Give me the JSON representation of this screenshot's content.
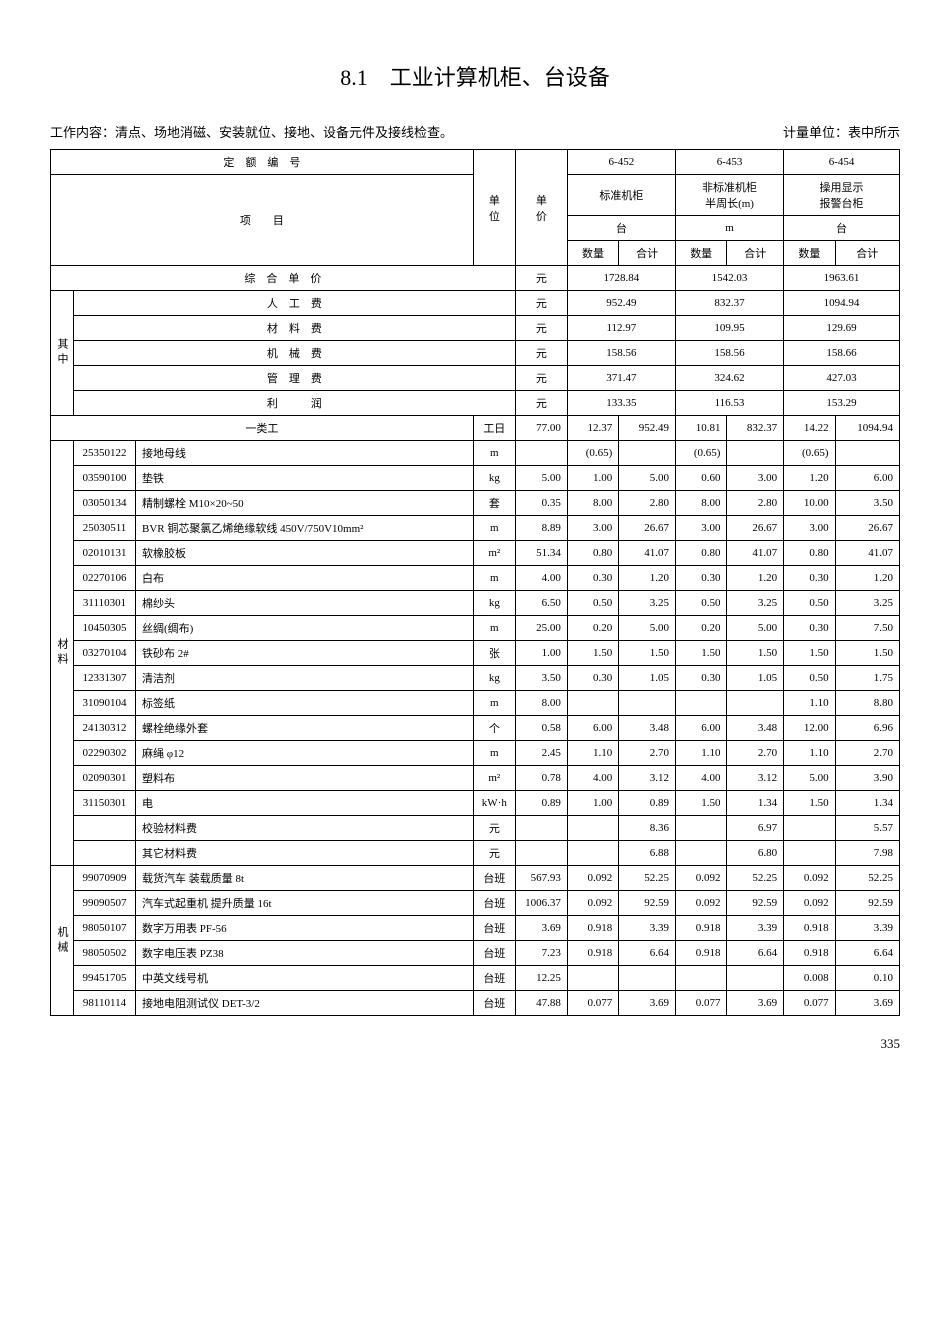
{
  "title": "8.1　工业计算机柜、台设备",
  "work_content": "工作内容：清点、场地消磁、安装就位、接地、设备元件及接线检查。",
  "unit_note": "计量单位：表中所示",
  "page_number": "335",
  "header": {
    "quota_label": "定　额　编　号",
    "item_label": "项　　目",
    "unit_col": "单位",
    "price_col": "单价",
    "qty": "数量",
    "sum": "合计",
    "composite": "综　合　单　价",
    "yuan": "元",
    "cols": [
      {
        "code": "6-452",
        "name": "标准机柜",
        "unit": "台"
      },
      {
        "code": "6-453",
        "name": "非标准机柜\n半周长(m)",
        "unit": "m"
      },
      {
        "code": "6-454",
        "name": "操用显示\n报警台柜",
        "unit": "台"
      }
    ],
    "composite_vals": [
      "1728.84",
      "1542.03",
      "1963.61"
    ]
  },
  "cost_group": {
    "label": "其中",
    "rows": [
      {
        "name": "人　工　费",
        "unit": "元",
        "v": [
          "952.49",
          "832.37",
          "1094.94"
        ]
      },
      {
        "name": "材　料　费",
        "unit": "元",
        "v": [
          "112.97",
          "109.95",
          "129.69"
        ]
      },
      {
        "name": "机　械　费",
        "unit": "元",
        "v": [
          "158.56",
          "158.56",
          "158.66"
        ]
      },
      {
        "name": "管　理　费",
        "unit": "元",
        "v": [
          "371.47",
          "324.62",
          "427.03"
        ]
      },
      {
        "name": "利　　　润",
        "unit": "元",
        "v": [
          "133.35",
          "116.53",
          "153.29"
        ]
      }
    ]
  },
  "labor": {
    "name": "一类工",
    "unit": "工日",
    "price": "77.00",
    "v": [
      [
        "12.37",
        "952.49"
      ],
      [
        "10.81",
        "832.37"
      ],
      [
        "14.22",
        "1094.94"
      ]
    ]
  },
  "materials": {
    "label": "材料",
    "rows": [
      {
        "code": "25350122",
        "name": "接地母线",
        "unit": "m",
        "price": "",
        "v": [
          [
            "(0.65)",
            ""
          ],
          [
            "(0.65)",
            ""
          ],
          [
            "(0.65)",
            ""
          ]
        ]
      },
      {
        "code": "03590100",
        "name": "垫铁",
        "unit": "kg",
        "price": "5.00",
        "v": [
          [
            "1.00",
            "5.00"
          ],
          [
            "0.60",
            "3.00"
          ],
          [
            "1.20",
            "6.00"
          ]
        ]
      },
      {
        "code": "03050134",
        "name": "精制螺栓 M10×20~50",
        "unit": "套",
        "price": "0.35",
        "v": [
          [
            "8.00",
            "2.80"
          ],
          [
            "8.00",
            "2.80"
          ],
          [
            "10.00",
            "3.50"
          ]
        ]
      },
      {
        "code": "25030511",
        "name": "BVR 铜芯聚氯乙烯绝缘软线 450V/750V10mm²",
        "unit": "m",
        "price": "8.89",
        "v": [
          [
            "3.00",
            "26.67"
          ],
          [
            "3.00",
            "26.67"
          ],
          [
            "3.00",
            "26.67"
          ]
        ]
      },
      {
        "code": "02010131",
        "name": "软橡胶板",
        "unit": "m²",
        "price": "51.34",
        "v": [
          [
            "0.80",
            "41.07"
          ],
          [
            "0.80",
            "41.07"
          ],
          [
            "0.80",
            "41.07"
          ]
        ]
      },
      {
        "code": "02270106",
        "name": "白布",
        "unit": "m",
        "price": "4.00",
        "v": [
          [
            "0.30",
            "1.20"
          ],
          [
            "0.30",
            "1.20"
          ],
          [
            "0.30",
            "1.20"
          ]
        ]
      },
      {
        "code": "31110301",
        "name": "棉纱头",
        "unit": "kg",
        "price": "6.50",
        "v": [
          [
            "0.50",
            "3.25"
          ],
          [
            "0.50",
            "3.25"
          ],
          [
            "0.50",
            "3.25"
          ]
        ]
      },
      {
        "code": "10450305",
        "name": "丝绸(绸布)",
        "unit": "m",
        "price": "25.00",
        "v": [
          [
            "0.20",
            "5.00"
          ],
          [
            "0.20",
            "5.00"
          ],
          [
            "0.30",
            "7.50"
          ]
        ]
      },
      {
        "code": "03270104",
        "name": "铁砂布 2#",
        "unit": "张",
        "price": "1.00",
        "v": [
          [
            "1.50",
            "1.50"
          ],
          [
            "1.50",
            "1.50"
          ],
          [
            "1.50",
            "1.50"
          ]
        ]
      },
      {
        "code": "12331307",
        "name": "清洁剂",
        "unit": "kg",
        "price": "3.50",
        "v": [
          [
            "0.30",
            "1.05"
          ],
          [
            "0.30",
            "1.05"
          ],
          [
            "0.50",
            "1.75"
          ]
        ]
      },
      {
        "code": "31090104",
        "name": "标签纸",
        "unit": "m",
        "price": "8.00",
        "v": [
          [
            "",
            ""
          ],
          [
            "",
            ""
          ],
          [
            "1.10",
            "8.80"
          ]
        ]
      },
      {
        "code": "24130312",
        "name": "螺栓绝缘外套",
        "unit": "个",
        "price": "0.58",
        "v": [
          [
            "6.00",
            "3.48"
          ],
          [
            "6.00",
            "3.48"
          ],
          [
            "12.00",
            "6.96"
          ]
        ]
      },
      {
        "code": "02290302",
        "name": "麻绳 φ12",
        "unit": "m",
        "price": "2.45",
        "v": [
          [
            "1.10",
            "2.70"
          ],
          [
            "1.10",
            "2.70"
          ],
          [
            "1.10",
            "2.70"
          ]
        ]
      },
      {
        "code": "02090301",
        "name": "塑料布",
        "unit": "m²",
        "price": "0.78",
        "v": [
          [
            "4.00",
            "3.12"
          ],
          [
            "4.00",
            "3.12"
          ],
          [
            "5.00",
            "3.90"
          ]
        ]
      },
      {
        "code": "31150301",
        "name": "电",
        "unit": "kW·h",
        "price": "0.89",
        "v": [
          [
            "1.00",
            "0.89"
          ],
          [
            "1.50",
            "1.34"
          ],
          [
            "1.50",
            "1.34"
          ]
        ]
      },
      {
        "code": "",
        "name": "校验材料费",
        "unit": "元",
        "price": "",
        "v": [
          [
            "",
            "8.36"
          ],
          [
            "",
            "6.97"
          ],
          [
            "",
            "5.57"
          ]
        ]
      },
      {
        "code": "",
        "name": "其它材料费",
        "unit": "元",
        "price": "",
        "v": [
          [
            "",
            "6.88"
          ],
          [
            "",
            "6.80"
          ],
          [
            "",
            "7.98"
          ]
        ]
      }
    ]
  },
  "machines": {
    "label": "机械",
    "rows": [
      {
        "code": "99070909",
        "name": "载货汽车 装载质量 8t",
        "unit": "台班",
        "price": "567.93",
        "v": [
          [
            "0.092",
            "52.25"
          ],
          [
            "0.092",
            "52.25"
          ],
          [
            "0.092",
            "52.25"
          ]
        ]
      },
      {
        "code": "99090507",
        "name": "汽车式起重机 提升质量 16t",
        "unit": "台班",
        "price": "1006.37",
        "v": [
          [
            "0.092",
            "92.59"
          ],
          [
            "0.092",
            "92.59"
          ],
          [
            "0.092",
            "92.59"
          ]
        ]
      },
      {
        "code": "98050107",
        "name": "数字万用表 PF-56",
        "unit": "台班",
        "price": "3.69",
        "v": [
          [
            "0.918",
            "3.39"
          ],
          [
            "0.918",
            "3.39"
          ],
          [
            "0.918",
            "3.39"
          ]
        ]
      },
      {
        "code": "98050502",
        "name": "数字电压表 PZ38",
        "unit": "台班",
        "price": "7.23",
        "v": [
          [
            "0.918",
            "6.64"
          ],
          [
            "0.918",
            "6.64"
          ],
          [
            "0.918",
            "6.64"
          ]
        ]
      },
      {
        "code": "99451705",
        "name": "中英文线号机",
        "unit": "台班",
        "price": "12.25",
        "v": [
          [
            "",
            ""
          ],
          [
            "",
            ""
          ],
          [
            "0.008",
            "0.10"
          ]
        ]
      },
      {
        "code": "98110114",
        "name": "接地电阻测试仪 DET-3/2",
        "unit": "台班",
        "price": "47.88",
        "v": [
          [
            "0.077",
            "3.69"
          ],
          [
            "0.077",
            "3.69"
          ],
          [
            "0.077",
            "3.69"
          ]
        ]
      }
    ]
  }
}
